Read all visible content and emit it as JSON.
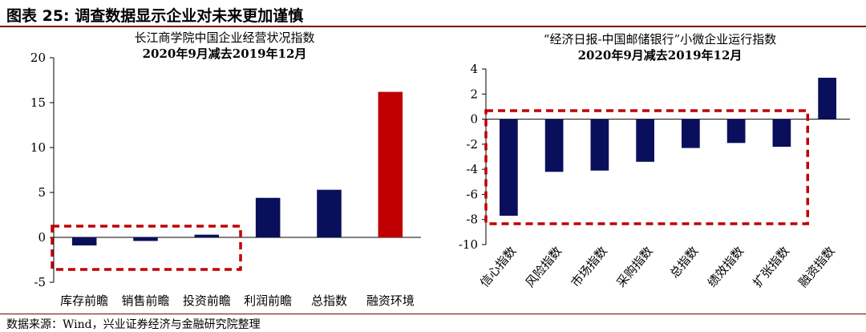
{
  "figure_title": "图表 25:  调查数据显示企业对未来更加谨慎",
  "source": "数据来源：Wind，兴业证券经济与金融研究院整理",
  "colors": {
    "navy": "#0a0f5c",
    "red": "#c00000",
    "frame": "#7a0000",
    "highlight_box": "#c00000"
  },
  "chart_data": [
    {
      "type": "bar",
      "title": "长江商学院中国企业经营状况指数",
      "subtitle": "2020年9月减去2019年12月",
      "categories": [
        "库存前瞻",
        "销售前瞻",
        "投资前瞻",
        "利润前瞻",
        "总指数",
        "融资环境"
      ],
      "values": [
        -0.9,
        -0.4,
        0.3,
        4.4,
        5.3,
        16.2
      ],
      "bar_colors": [
        "#0a0f5c",
        "#0a0f5c",
        "#0a0f5c",
        "#0a0f5c",
        "#0a0f5c",
        "#c00000"
      ],
      "ylim": [
        -5,
        20
      ],
      "yticks": [
        -5,
        0,
        5,
        10,
        15,
        20
      ],
      "highlight_categories": [
        0,
        2
      ],
      "grid": false
    },
    {
      "type": "bar",
      "title": "“经济日报-中国邮储银行”小微企业运行指数",
      "subtitle": "2020年9月减去2019年12月",
      "categories": [
        "信心指数",
        "风险指数",
        "市场指数",
        "采购指数",
        "总指数",
        "绩效指数",
        "扩张指数",
        "融资指数"
      ],
      "values": [
        -7.7,
        -4.2,
        -4.1,
        -3.4,
        -2.3,
        -1.9,
        -2.2,
        3.3
      ],
      "bar_colors": [
        "#0a0f5c",
        "#0a0f5c",
        "#0a0f5c",
        "#0a0f5c",
        "#0a0f5c",
        "#0a0f5c",
        "#0a0f5c",
        "#0a0f5c"
      ],
      "ylim": [
        -10,
        4
      ],
      "yticks": [
        -10,
        -8,
        -6,
        -4,
        -2,
        0,
        2,
        4
      ],
      "highlight_categories": [
        0,
        6
      ],
      "grid": false
    }
  ]
}
